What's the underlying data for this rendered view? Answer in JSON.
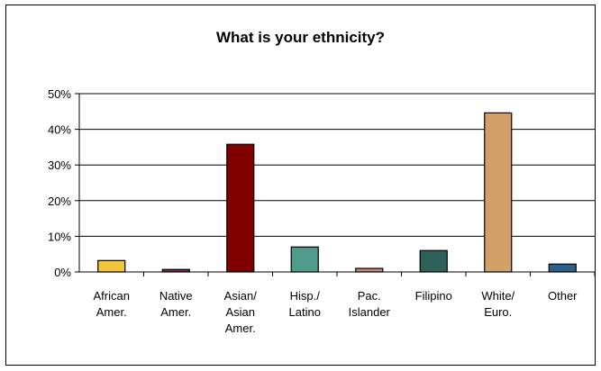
{
  "chart_data": {
    "type": "bar",
    "title": "What is your ethnicity?",
    "categories": [
      [
        "African",
        "Amer."
      ],
      [
        "Native",
        "Amer."
      ],
      [
        "Asian/",
        "Asian",
        "Amer."
      ],
      [
        "Hisp./",
        "Latino"
      ],
      [
        "Pac.",
        "Islander"
      ],
      [
        "Filipino"
      ],
      [
        "White/",
        "Euro."
      ],
      [
        "Other"
      ]
    ],
    "values": [
      3.2,
      0.7,
      35.8,
      7.0,
      1.0,
      6.0,
      44.6,
      2.2
    ],
    "bar_colors": [
      "#f2c43c",
      "#7b2d3c",
      "#800000",
      "#4f9a8a",
      "#c48878",
      "#2e6159",
      "#d4a06a",
      "#2c5f8a"
    ],
    "yticks": [
      "0%",
      "10%",
      "20%",
      "30%",
      "40%",
      "50%"
    ],
    "ylim": [
      0,
      50
    ],
    "grid": true,
    "legend": "none"
  }
}
